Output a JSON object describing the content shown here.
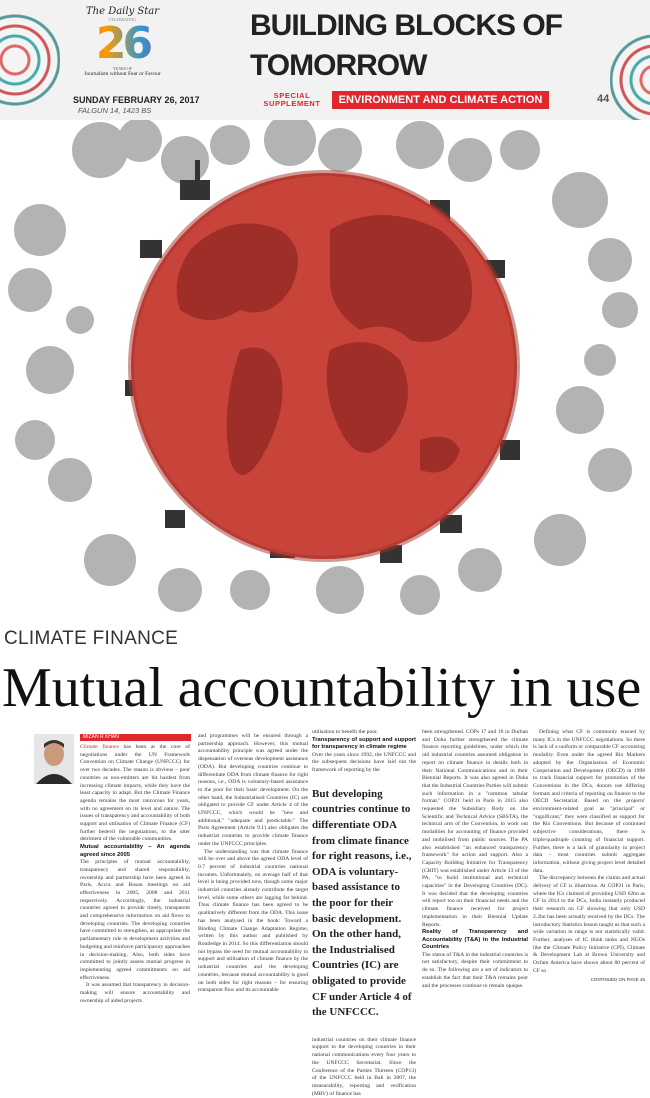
{
  "header": {
    "newspaper": "The Daily Star",
    "celebrating": "CELEBRATING",
    "anniversary": "26",
    "years_of": "YEARS OF",
    "tagline": "Journalism without Fear or Favour",
    "date": "SUNDAY FEBRUARY 26, 2017",
    "bangla_date": "FALGUN 14, 1423 BS",
    "title": "BUILDING BLOCKS OF\nTOMORROW",
    "special": "SPECIAL SUPPLEMENT",
    "section": "ENVIRONMENT AND CLIMATE ACTION",
    "page": "44",
    "accent": "#e2262e"
  },
  "article": {
    "kicker": "CLIMATE FINANCE",
    "headline": "Mutual accountability in use",
    "byline": "MIZAN R KHAN",
    "lead_highlight": "Climate finance",
    "col1": [
      " has been at the core of negotiations under the UN Framework Convention on Climate Change (UNFCCC) for over two decades. The reason is obvious – poor countries as non-emitters are hit hardest from increasing climate impacts, while they have the least capacity to adapt. But the Climate Finance agenda remains the most rancorous for years, with no agreement on its level and nature. The issues of transparency and accountability of both support and utilisation of Climate Finance (CF) further bedevil the negotiations, to the utter detriment of the vulnerable communities."
    ],
    "sub1": "Mutual accountability – An agenda agreed since 2005",
    "col1b": [
      "The principles of mutual accountability, transparency and shared responsibility, ownership and partnership have been agreed in Paris, Accra and Busan meetings on aid effectiveness in 2005, 2008 and 2011 respectively. Accordingly, the industrial countries agreed to provide timely, transparent and comprehensive information on aid flows to developing countries. The developing countries have committed to strengthen, as appropriate the parliamentary role in development activities and budgeting and reinforce participatory approaches in decision-making. Also, both sides have committed to jointly assess mutual progress in implementing agreed commitments on aid effectiveness.",
      "It was assumed that transparency in decision-making will ensure accountability and ownership of aided projects"
    ],
    "col2": [
      "and programmes will be ensured through a partnership approach. However, this mutual accountability principle was agreed under the dispensation of overseas development assistance (ODA). But developing countries continue to differentiate ODA from climate finance for right reasons, i.e., ODA is voluntary-based assistance to the poor for their basic development. On the other hand, the Industrialised Countries (IC) are obligated to provide CF under Article 4 of the UNFCCC, which would be \"new and additional,\" \"adequate and predictable.\" The Paris Agreement (Article 9.1) also obligates the industrial countries to provide climate finance under the UNFCCC principles.",
      "The understanding was that climate finance will be over and above the agreed ODA level of 0.7 percent of industrial countries national incomes. Unfortunately, on average half of that level is being provided now, though some major industrial countries already contribute the target level, while some others are lagging far behind. Thus climate finance has been agreed to be qualitatively different from the ODA. This issue has been analysed in the book: Toward a Binding Climate Change Adaptation Regime, written by this author and published by Routledge in 2014. So this differentiation should not bypass the need for mutual accountability in support and utilisation of climate finance by the industrial countries and the developing countries, because mutual accountability is good on both sides for right reasons – for ensuring transparent flow and its accountable"
    ],
    "col3a": "utilisation to benefit the poor.",
    "sub2": "Transparency of support and support for transparency in climate regime",
    "col3b": "Over the years since 1992, the UNFCCC and the subsequent decisions have laid out the framework of reporting by the",
    "pullquote": "But developing countries continue to differentiate ODA from climate finance for right reasons, i.e., ODA is voluntary-based assistance to the poor for their basic development. On the other hand, the Industrialised Countries (IC) are obligated to provide CF under Article 4 of the UNFCCC.",
    "col3c": "industrial countries on their climate finance support to the developing countries in their national communications every four years to the UNFCCC Secretariat. Since the Conference of the Parties Thirteen (COP13) of the UNFCCC held in Bali in 2007, the measurability, reporting and verification (MRV) of finance has",
    "col4a": "been strengthened. COPs 17 and 18 in Durban and Doha further strengthened the climate finance reporting guidelines, under which the old industrial countries assumed obligation to report on climate finance in details both in their National Communications and in their Biennial Reports. It was also agreed in Doha that the Industrial Countries Parties will submit such information in a \"common tabular format.\" COP21 held in Paris in 2015 also requested the Subsidiary Body on the Scientific and Technical Advice (SBSTA), the technical arm of the Convention, to work out modalities for accounting of finance provided and mobilised from public sources. The PA also established \"an enhanced transparency framework\" for action and support. Also a Capacity Building Initiative for Transparency (CBIT) was established under Article 13 of the PA, \"to build institutional and technical capacities\" in the Developing Countries (DC). It was decided that the developing countries will report too on their financial needs and the climate finance received for project implementation in their Biennial Update Reports.",
    "sub3": "Reality of Transparency and Accountability (T&A) in the Industrial Countries",
    "col4b": "The status of T&A in the industrial countries is not satisfactory, despite their commitment to do so. The following are a set of indicators to establish the fact that their T&A remains poor and the processes continue to remain opaque.",
    "col5": [
      "Defining what CF is commonly ensued by many ICs in the UNFCCC negotiations. So there is lack of a uniform or comparable CF accounting modality. Even under the agreed Rio Markers adopted by the Organisation of Economic Cooperation and Development (OECD) in 1998 to track financial support for promotion of the Conventions in the DCs, donors use differing formats and criteria of reporting on finance to the OECD Secretariat. Based on the projects' environment-related goal as \"principal\" or \"significant,\" they were classified as support for the Rio Conventions. But because of continued subjective considerations, there is triple/quadruple counting of financial support. Further, there is a lack of granularity in project data – most countries submit aggregate information, without giving project level detailed data.",
      "The discrepancy between the claims and actual delivery of CF is illustrious. At COP21 in Paris, where the ICs claimed of providing USD 62bn as CF in 2014 to the DCs, India instantly produced their research on CF showing that only USD 2.2bn has been actually received by the DCs. The introductory Statistics lesson taught us that such a wide variation in range is not statistically valid. Further, analyses of IC think tanks and NGOs like the Climate Policy Initiative (CPI), Climate & Development Lab at Brown University and Oxfam America have shown about 80 percent of CF so"
    ],
    "continued": "CONTINUED ON PAGE 45"
  }
}
